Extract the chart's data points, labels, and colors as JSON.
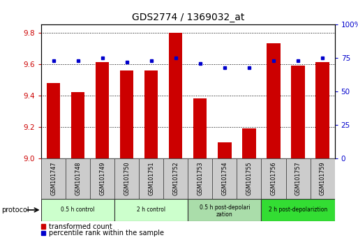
{
  "title": "GDS2774 / 1369032_at",
  "samples": [
    "GSM101747",
    "GSM101748",
    "GSM101749",
    "GSM101750",
    "GSM101751",
    "GSM101752",
    "GSM101753",
    "GSM101754",
    "GSM101755",
    "GSM101756",
    "GSM101757",
    "GSM101759"
  ],
  "bar_values": [
    9.48,
    9.42,
    9.61,
    9.56,
    9.56,
    9.8,
    9.38,
    9.1,
    9.19,
    9.73,
    9.59,
    9.61
  ],
  "dot_values": [
    73,
    73,
    75,
    72,
    73,
    75,
    71,
    68,
    68,
    73,
    73,
    75
  ],
  "y_min": 9.0,
  "y_max": 9.85,
  "y_ticks": [
    9.0,
    9.2,
    9.4,
    9.6,
    9.8
  ],
  "y2_ticks": [
    0,
    25,
    50,
    75,
    100
  ],
  "bar_color": "#cc0000",
  "dot_color": "#0000cc",
  "bar_width": 0.55,
  "groups": [
    {
      "label": "0.5 h control",
      "start": 0,
      "end": 2,
      "color": "#ccffcc"
    },
    {
      "label": "2 h control",
      "start": 3,
      "end": 5,
      "color": "#ccffcc"
    },
    {
      "label": "0.5 h post-depolarization",
      "start": 6,
      "end": 8,
      "color": "#aaddaa"
    },
    {
      "label": "2 h post-depolariztion",
      "start": 9,
      "end": 11,
      "color": "#33dd33"
    }
  ],
  "legend_bar_label": "transformed count",
  "legend_dot_label": "percentile rank within the sample",
  "protocol_label": "protocol",
  "title_fontsize": 10,
  "ylabel_color_left": "#cc0000",
  "ylabel_color_right": "#0000cc",
  "sample_box_color": "#cccccc",
  "bg_color": "#ffffff"
}
